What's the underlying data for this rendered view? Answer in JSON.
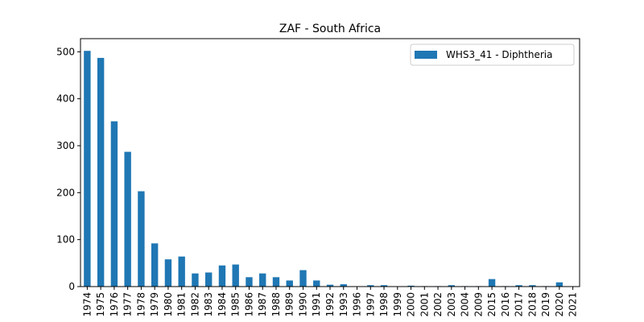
{
  "chart_data": {
    "type": "bar",
    "title": "ZAF - South Africa",
    "xlabel": "",
    "ylabel": "",
    "ylim": [
      0,
      528
    ],
    "yticks": [
      0,
      100,
      200,
      300,
      400,
      500
    ],
    "grid": false,
    "legend_position": "top-right",
    "categories": [
      "1974",
      "1975",
      "1976",
      "1977",
      "1978",
      "1979",
      "1980",
      "1981",
      "1982",
      "1983",
      "1984",
      "1985",
      "1986",
      "1987",
      "1988",
      "1989",
      "1990",
      "1991",
      "1992",
      "1993",
      "1996",
      "1997",
      "1998",
      "1999",
      "2000",
      "2001",
      "2002",
      "2003",
      "2004",
      "2009",
      "2015",
      "2016",
      "2017",
      "2018",
      "2019",
      "2020",
      "2021"
    ],
    "series": [
      {
        "name": "WHS3_41 - Diphtheria",
        "color": "#1f77b4",
        "values": [
          502,
          487,
          352,
          287,
          203,
          92,
          58,
          64,
          28,
          30,
          45,
          47,
          20,
          28,
          20,
          13,
          35,
          13,
          4,
          5,
          0,
          3,
          3,
          0,
          2,
          1,
          1,
          3,
          1,
          1,
          16,
          1,
          3,
          3,
          1,
          9,
          0
        ]
      }
    ]
  }
}
